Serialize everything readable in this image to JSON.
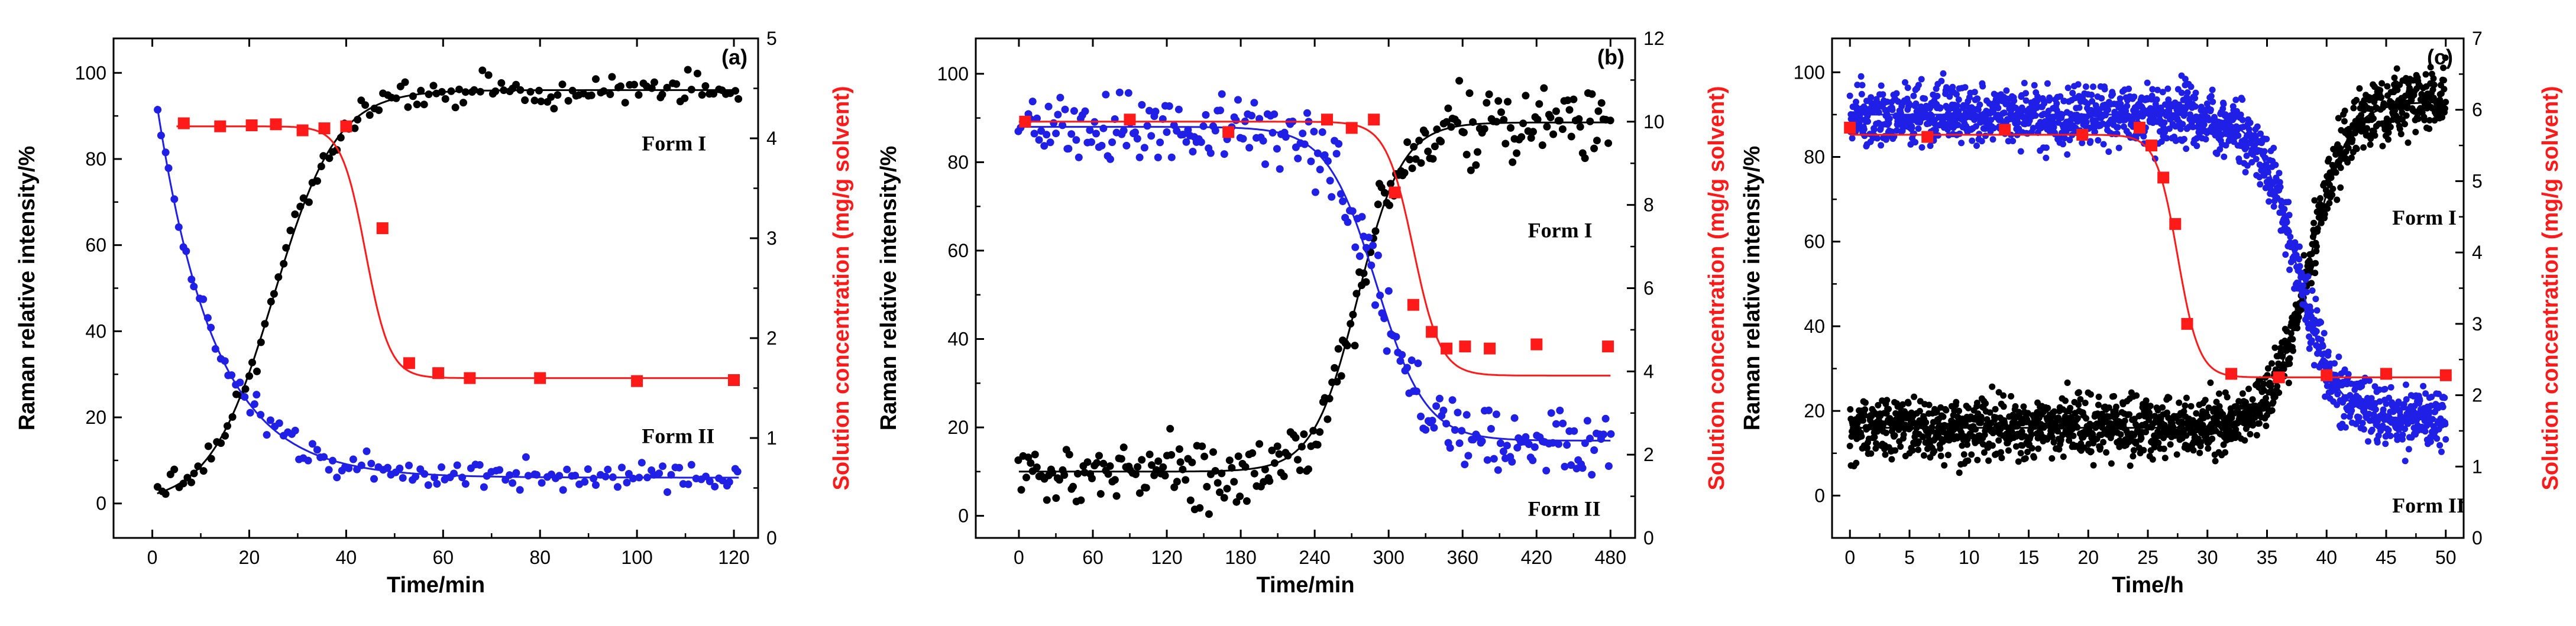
{
  "figure": {
    "colors": {
      "formI": "#000000",
      "formII": "#1f1fe6",
      "solution": "#ff1a1a",
      "axis": "#000000"
    }
  },
  "chart_data": [
    {
      "type": "scatter",
      "panel_label": "(a)",
      "xlabel": "Time/min",
      "ylabel_left": "Raman relative intensity/%",
      "ylabel_right": "Solution concentration (mg/g solvent)",
      "xlim": [
        -8,
        125
      ],
      "ylim_left": [
        -8,
        108
      ],
      "ylim_right": [
        0,
        5
      ],
      "xticks": [
        0,
        20,
        40,
        60,
        80,
        100,
        120
      ],
      "yticks_left": [
        0,
        20,
        40,
        60,
        80,
        100
      ],
      "yticks_right": [
        0,
        1,
        2,
        3,
        4,
        5
      ],
      "annotations": [
        {
          "text": "Form I",
          "x": 101,
          "y": 82,
          "axis": "left",
          "anchor": "start"
        },
        {
          "text": "Form II",
          "x": 101,
          "y": 14,
          "axis": "left",
          "anchor": "start"
        }
      ],
      "series": [
        {
          "name": "Form I",
          "axis": "left",
          "color": "#000000",
          "kind": "scatter+fit",
          "t_start": 1,
          "t_end": 121,
          "n": 140,
          "noise": 2.5,
          "fit": {
            "model": "sigmoid",
            "from": 0,
            "to": 96,
            "t0": 25,
            "w": 6.5
          }
        },
        {
          "name": "Form II",
          "axis": "left",
          "color": "#1f1fe6",
          "kind": "scatter+fit",
          "t_start": 1,
          "t_end": 121,
          "n": 140,
          "noise": 2.5,
          "fit": {
            "model": "decay",
            "from": 100,
            "to": 6,
            "k": 0.085
          }
        },
        {
          "name": "Solution concentration",
          "axis": "right",
          "color": "#ff1a1a",
          "kind": "markers+fit",
          "points": [
            [
              6.5,
              4.15
            ],
            [
              14,
              4.12
            ],
            [
              20.5,
              4.13
            ],
            [
              25.5,
              4.14
            ],
            [
              31,
              4.08
            ],
            [
              35.5,
              4.1
            ],
            [
              40,
              4.12
            ],
            [
              47.5,
              3.1
            ],
            [
              53,
              1.75
            ],
            [
              59,
              1.65
            ],
            [
              65.5,
              1.6
            ],
            [
              80,
              1.6
            ],
            [
              100,
              1.57
            ],
            [
              120,
              1.58
            ]
          ],
          "fit": {
            "model": "sigmoid",
            "from": 4.12,
            "to": 1.6,
            "t0": 44,
            "w": 2.5,
            "t_start": 5
          }
        }
      ]
    },
    {
      "type": "scatter",
      "panel_label": "(b)",
      "xlabel": "Time/min",
      "ylabel_left": "Raman relative intensity/%",
      "ylabel_right": "Solution concentration (mg/g solvent)",
      "xlim": [
        -35,
        500
      ],
      "ylim_left": [
        -5,
        108
      ],
      "ylim_right": [
        0,
        12
      ],
      "xticks": [
        0,
        60,
        120,
        180,
        240,
        300,
        360,
        420,
        480
      ],
      "yticks_left": [
        0,
        20,
        40,
        60,
        80,
        100
      ],
      "yticks_right": [
        0,
        2,
        4,
        6,
        8,
        10,
        12
      ],
      "annotations": [
        {
          "text": "Form I",
          "x": 413,
          "y": 63,
          "axis": "left",
          "anchor": "start"
        },
        {
          "text": "Form II",
          "x": 413,
          "y": 0,
          "axis": "left",
          "anchor": "start"
        }
      ],
      "series": [
        {
          "name": "Form I",
          "axis": "left",
          "color": "#000000",
          "kind": "scatter+fit",
          "t_start": 0,
          "t_end": 480,
          "n": 260,
          "noise": 5.5,
          "fit": {
            "model": "sigmoid",
            "from": 10,
            "to": 89,
            "t0": 275,
            "w": 18
          }
        },
        {
          "name": "Form II",
          "axis": "left",
          "color": "#1f1fe6",
          "kind": "scatter+fit",
          "t_start": 0,
          "t_end": 480,
          "n": 260,
          "noise": 5.5,
          "fit": {
            "model": "sigmoid",
            "from": 88,
            "to": 17,
            "t0": 290,
            "w": 20
          }
        },
        {
          "name": "Solution concentration",
          "axis": "right",
          "color": "#ff1a1a",
          "kind": "markers+fit",
          "points": [
            [
              5,
              10.0
            ],
            [
              90,
              10.05
            ],
            [
              170,
              9.75
            ],
            [
              250,
              10.05
            ],
            [
              270,
              9.85
            ],
            [
              288,
              10.05
            ],
            [
              305,
              8.3
            ],
            [
              320,
              5.6
            ],
            [
              335,
              4.95
            ],
            [
              347,
              4.55
            ],
            [
              362,
              4.6
            ],
            [
              382,
              4.55
            ],
            [
              420,
              4.65
            ],
            [
              478,
              4.6
            ]
          ],
          "fit": {
            "model": "sigmoid",
            "from": 10,
            "to": 3.9,
            "t0": 320,
            "w": 11,
            "t_start": 0
          }
        }
      ]
    },
    {
      "type": "scatter",
      "panel_label": "(c)",
      "xlabel": "Time/h",
      "ylabel_left": "Raman relative intensity/%",
      "ylabel_right": "Solution concentration (mg/g solvent)",
      "xlim": [
        -1.5,
        51.5
      ],
      "ylim_left": [
        -10,
        108
      ],
      "ylim_right": [
        0,
        7
      ],
      "xticks": [
        0,
        5,
        10,
        15,
        20,
        25,
        30,
        35,
        40,
        45,
        50
      ],
      "yticks_left": [
        0,
        20,
        40,
        60,
        80,
        100
      ],
      "yticks_right": [
        0,
        1,
        2,
        3,
        4,
        5,
        6,
        7
      ],
      "annotations": [
        {
          "text": "Form I",
          "x": 45.5,
          "y": 64,
          "axis": "left",
          "anchor": "start"
        },
        {
          "text": "Form II",
          "x": 45.5,
          "y": -4,
          "axis": "left",
          "anchor": "start"
        }
      ],
      "series": [
        {
          "name": "Form I",
          "axis": "left",
          "color": "#000000",
          "kind": "scatter+fit",
          "t_start": 0,
          "t_end": 50,
          "n": 1500,
          "noise": 5,
          "fit": {
            "model": "sigmoid",
            "from": 16,
            "to": 93,
            "t0": 38.5,
            "w": 1.6
          }
        },
        {
          "name": "Form II",
          "axis": "left",
          "color": "#1f1fe6",
          "kind": "scatter+fit",
          "t_start": 0,
          "t_end": 50,
          "n": 1500,
          "noise": 5,
          "fit": {
            "model": "sigmoid",
            "from": 90,
            "to": 18,
            "t0": 37.5,
            "w": 1.6
          }
        },
        {
          "name": "Solution concentration",
          "axis": "right",
          "color": "#ff1a1a",
          "kind": "markers+fit",
          "points": [
            [
              0,
              5.75
            ],
            [
              6.5,
              5.62
            ],
            [
              13,
              5.72
            ],
            [
              19.5,
              5.65
            ],
            [
              24.3,
              5.75
            ],
            [
              25.3,
              5.5
            ],
            [
              26.3,
              5.05
            ],
            [
              27.3,
              4.4
            ],
            [
              28.3,
              3.0
            ],
            [
              32,
              2.3
            ],
            [
              36,
              2.25
            ],
            [
              40,
              2.28
            ],
            [
              45,
              2.3
            ],
            [
              50,
              2.28
            ]
          ],
          "fit": {
            "model": "sigmoid",
            "from": 5.65,
            "to": 2.25,
            "t0": 27.5,
            "w": 0.9,
            "t_start": 0
          }
        }
      ]
    }
  ]
}
